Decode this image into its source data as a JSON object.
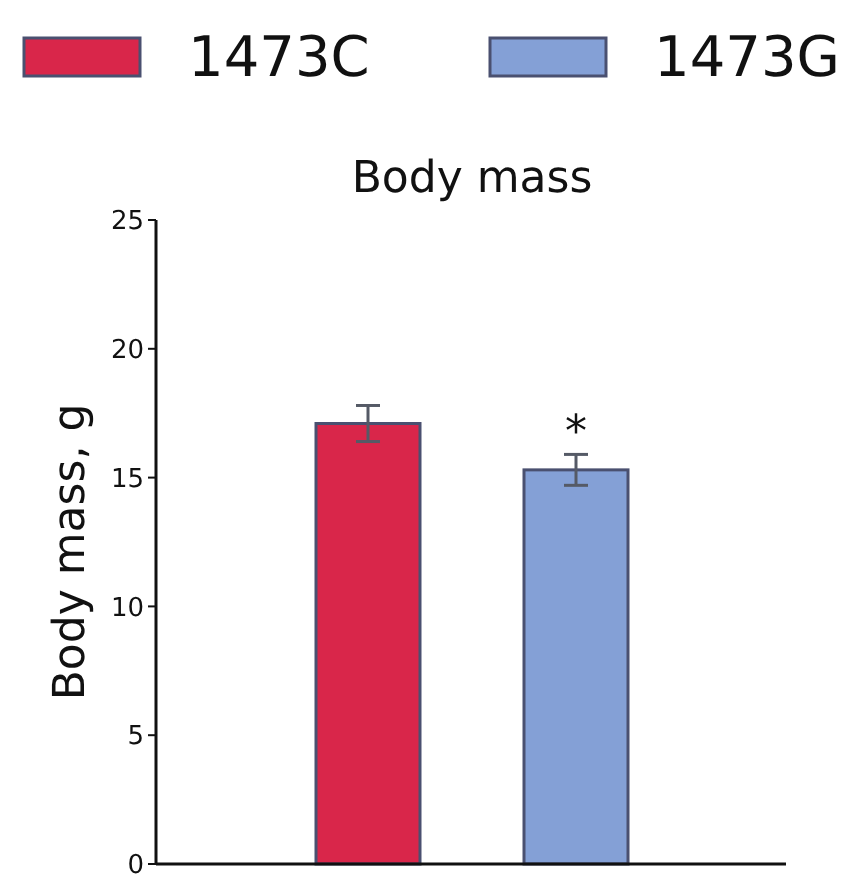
{
  "chart_data": {
    "type": "bar",
    "title": "Body mass",
    "ylabel": "Body mass, g",
    "categories": [
      null,
      null
    ],
    "series": [
      {
        "name": "1473C",
        "color": "#d9264a",
        "values": [
          17.1,
          null
        ],
        "errors": [
          0.7,
          null
        ]
      },
      {
        "name": "1473G",
        "color": "#84a0d6",
        "values": [
          null,
          15.3
        ],
        "errors": [
          null,
          0.6
        ]
      }
    ],
    "ylim": [
      0,
      25
    ],
    "yticks": [
      0,
      5,
      10,
      15,
      20,
      25
    ],
    "grid": false,
    "legend": "top",
    "annotations": [
      "*"
    ]
  }
}
